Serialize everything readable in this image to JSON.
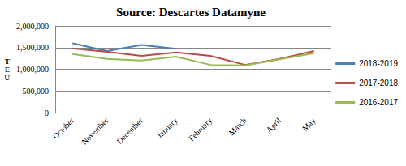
{
  "chart_data": {
    "type": "line",
    "title": "Source: Descartes Datamyne",
    "y_label": "TEU",
    "categories": [
      "October",
      "November",
      "December",
      "January",
      "February",
      "March",
      "April",
      "May"
    ],
    "series": [
      {
        "name": "2018-2019",
        "color": "#4a7ebb",
        "values": [
          1600000,
          1420000,
          1560000,
          1470000,
          null,
          null,
          null,
          null
        ]
      },
      {
        "name": "2017-2018",
        "color": "#be4b48",
        "values": [
          1480000,
          1400000,
          1310000,
          1390000,
          1310000,
          1100000,
          1240000,
          1420000
        ]
      },
      {
        "name": "2016-2017",
        "color": "#98b954",
        "values": [
          1350000,
          1240000,
          1200000,
          1290000,
          1100000,
          1090000,
          1230000,
          1370000
        ]
      }
    ],
    "ylim": [
      0,
      2000000
    ],
    "yticks": [
      0,
      {
        "value": 500000,
        "label": "500,000"
      },
      {
        "value": 1000000,
        "label": "1,000,000"
      },
      {
        "value": 1500000,
        "label": "1,500,000"
      },
      {
        "value": 2000000,
        "label": "2,000,000"
      }
    ],
    "grid": true,
    "legend": "right"
  }
}
